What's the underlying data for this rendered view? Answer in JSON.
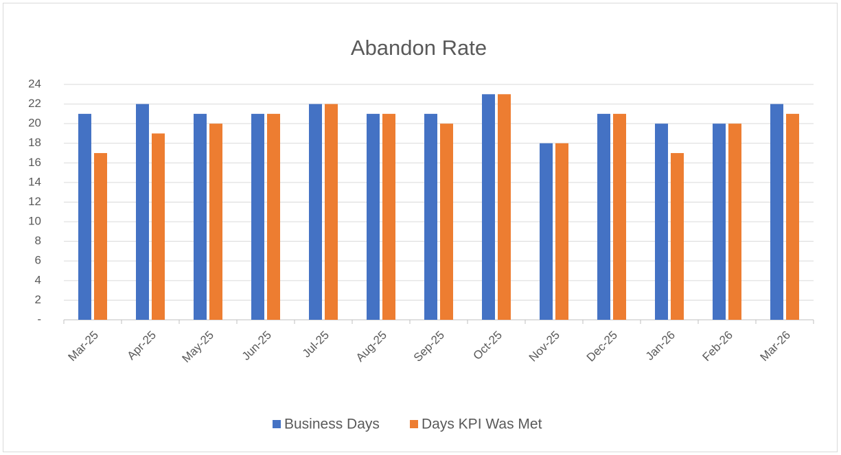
{
  "chart_data": {
    "type": "bar",
    "title": "Abandon Rate",
    "categories": [
      "Mar-25",
      "Apr-25",
      "May-25",
      "Jun-25",
      "Jul-25",
      "Aug-25",
      "Sep-25",
      "Oct-25",
      "Nov-25",
      "Dec-25",
      "Jan-26",
      "Feb-26",
      "Mar-26"
    ],
    "series": [
      {
        "name": "Business Days",
        "color": "#4472c4",
        "values": [
          21,
          22,
          21,
          21,
          22,
          21,
          21,
          23,
          18,
          21,
          20,
          20,
          22
        ]
      },
      {
        "name": "Days KPI Was Met",
        "color": "#ed7d31",
        "values": [
          17,
          19,
          20,
          21,
          22,
          21,
          20,
          23,
          18,
          21,
          17,
          20,
          21
        ]
      }
    ],
    "ylim": [
      0,
      24
    ],
    "yticks": [
      {
        "value": 0,
        "label": "-"
      },
      2,
      4,
      6,
      8,
      10,
      12,
      14,
      16,
      18,
      20,
      22,
      24
    ],
    "grid": true,
    "legend": "bottom"
  }
}
